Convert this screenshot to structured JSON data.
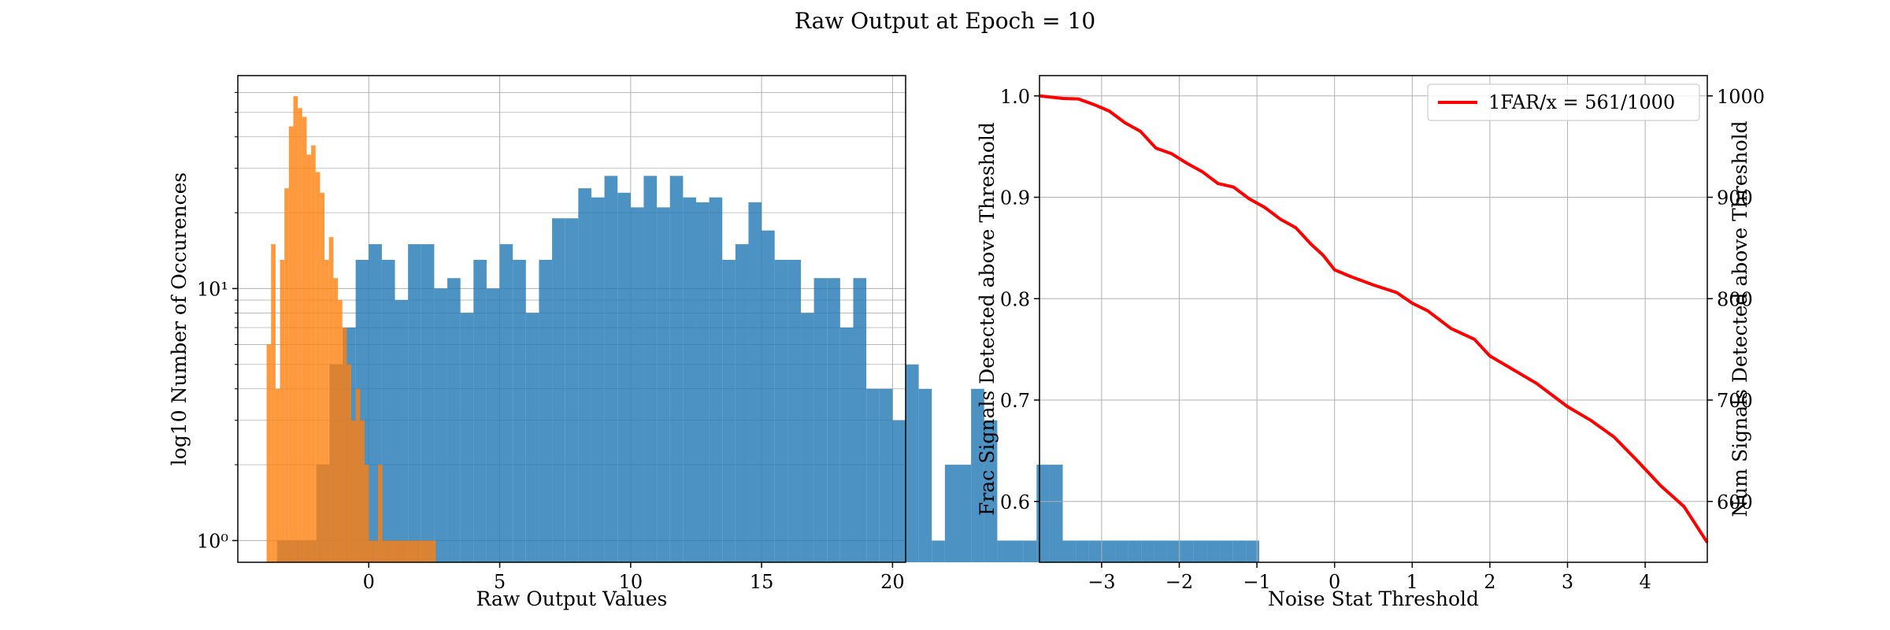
{
  "figure": {
    "title": "Raw Output at Epoch = 10"
  },
  "chart_data": [
    {
      "type": "bar",
      "subtype": "histogram",
      "xlabel": "Raw Output Values",
      "ylabel": "log10 Number of Occurences",
      "xlim": [
        -5,
        20.5
      ],
      "ylim": [
        0.82,
        70
      ],
      "yscale": "log",
      "grid": true,
      "xticks": [
        0,
        5,
        10,
        15,
        20
      ],
      "yticks": [
        {
          "value": 1,
          "label": "10⁰"
        },
        {
          "value": 10,
          "label": "10¹"
        }
      ],
      "colors": {
        "signal": "#1f77b4",
        "noise": "#ff7f0e"
      },
      "series": [
        {
          "bin_width": 0.5,
          "bin_edges_start": -3.5,
          "counts": [
            1,
            1,
            1,
            2,
            5,
            7,
            13,
            15,
            13,
            9,
            15,
            15,
            10,
            11,
            8,
            13,
            10,
            15,
            13,
            8,
            13,
            19,
            19,
            25,
            23,
            28,
            24,
            21,
            28,
            21,
            28,
            23,
            22,
            23,
            13,
            15,
            22,
            17,
            13,
            13,
            8,
            11,
            11,
            7,
            11,
            4,
            4,
            3,
            5,
            4,
            1,
            2,
            2,
            4,
            3,
            1,
            1,
            1,
            2,
            2,
            1,
            1,
            1,
            1,
            1,
            1,
            1,
            1,
            1,
            1,
            1,
            1,
            1,
            1,
            1
          ]
        },
        {
          "bin_width": 0.17,
          "bin_edges_start": -3.9,
          "counts": [
            6,
            15,
            4,
            13,
            25,
            44,
            58,
            52,
            48,
            34,
            37,
            29,
            24,
            13,
            16,
            11,
            9,
            7,
            5,
            3,
            4,
            3,
            2,
            1,
            1,
            2,
            1,
            1,
            1,
            1,
            1,
            1,
            1,
            1,
            1,
            1,
            1,
            1
          ]
        }
      ]
    },
    {
      "type": "line",
      "xlabel": "Noise Stat Threshold",
      "ylabel": "Frac Signals Detected above Threshold",
      "ylabel_right": "Num Signals Detected above Threshold",
      "xlim": [
        -3.8,
        4.8
      ],
      "ylim": [
        0.54,
        1.02
      ],
      "ylim_right": [
        540,
        1020
      ],
      "grid": true,
      "xticks": [
        -3,
        -2,
        -1,
        0,
        1,
        2,
        3,
        4
      ],
      "yticks": [
        0.6,
        0.7,
        0.8,
        0.9,
        1.0
      ],
      "yticks_right": [
        600,
        700,
        800,
        900,
        1000
      ],
      "legend_position": "top-right",
      "series": [
        {
          "name": "1FAR/x = 561/1000",
          "color": "#ff0000",
          "x": [
            -3.8,
            -3.5,
            -3.3,
            -3.1,
            -2.9,
            -2.7,
            -2.5,
            -2.3,
            -2.1,
            -1.9,
            -1.7,
            -1.5,
            -1.3,
            -1.1,
            -0.9,
            -0.7,
            -0.5,
            -0.3,
            -0.15,
            0,
            0.2,
            0.5,
            0.8,
            1.0,
            1.2,
            1.5,
            1.8,
            2.0,
            2.3,
            2.6,
            2.8,
            3.0,
            3.3,
            3.6,
            3.9,
            4.2,
            4.5,
            4.8
          ],
          "y": [
            1.0,
            0.999,
            0.997,
            0.993,
            0.985,
            0.975,
            0.965,
            0.95,
            0.943,
            0.935,
            0.925,
            0.915,
            0.91,
            0.9,
            0.89,
            0.88,
            0.87,
            0.855,
            0.843,
            0.83,
            0.822,
            0.815,
            0.806,
            0.797,
            0.788,
            0.772,
            0.76,
            0.745,
            0.73,
            0.718,
            0.705,
            0.695,
            0.68,
            0.665,
            0.64,
            0.617,
            0.595,
            0.561
          ]
        }
      ]
    }
  ]
}
